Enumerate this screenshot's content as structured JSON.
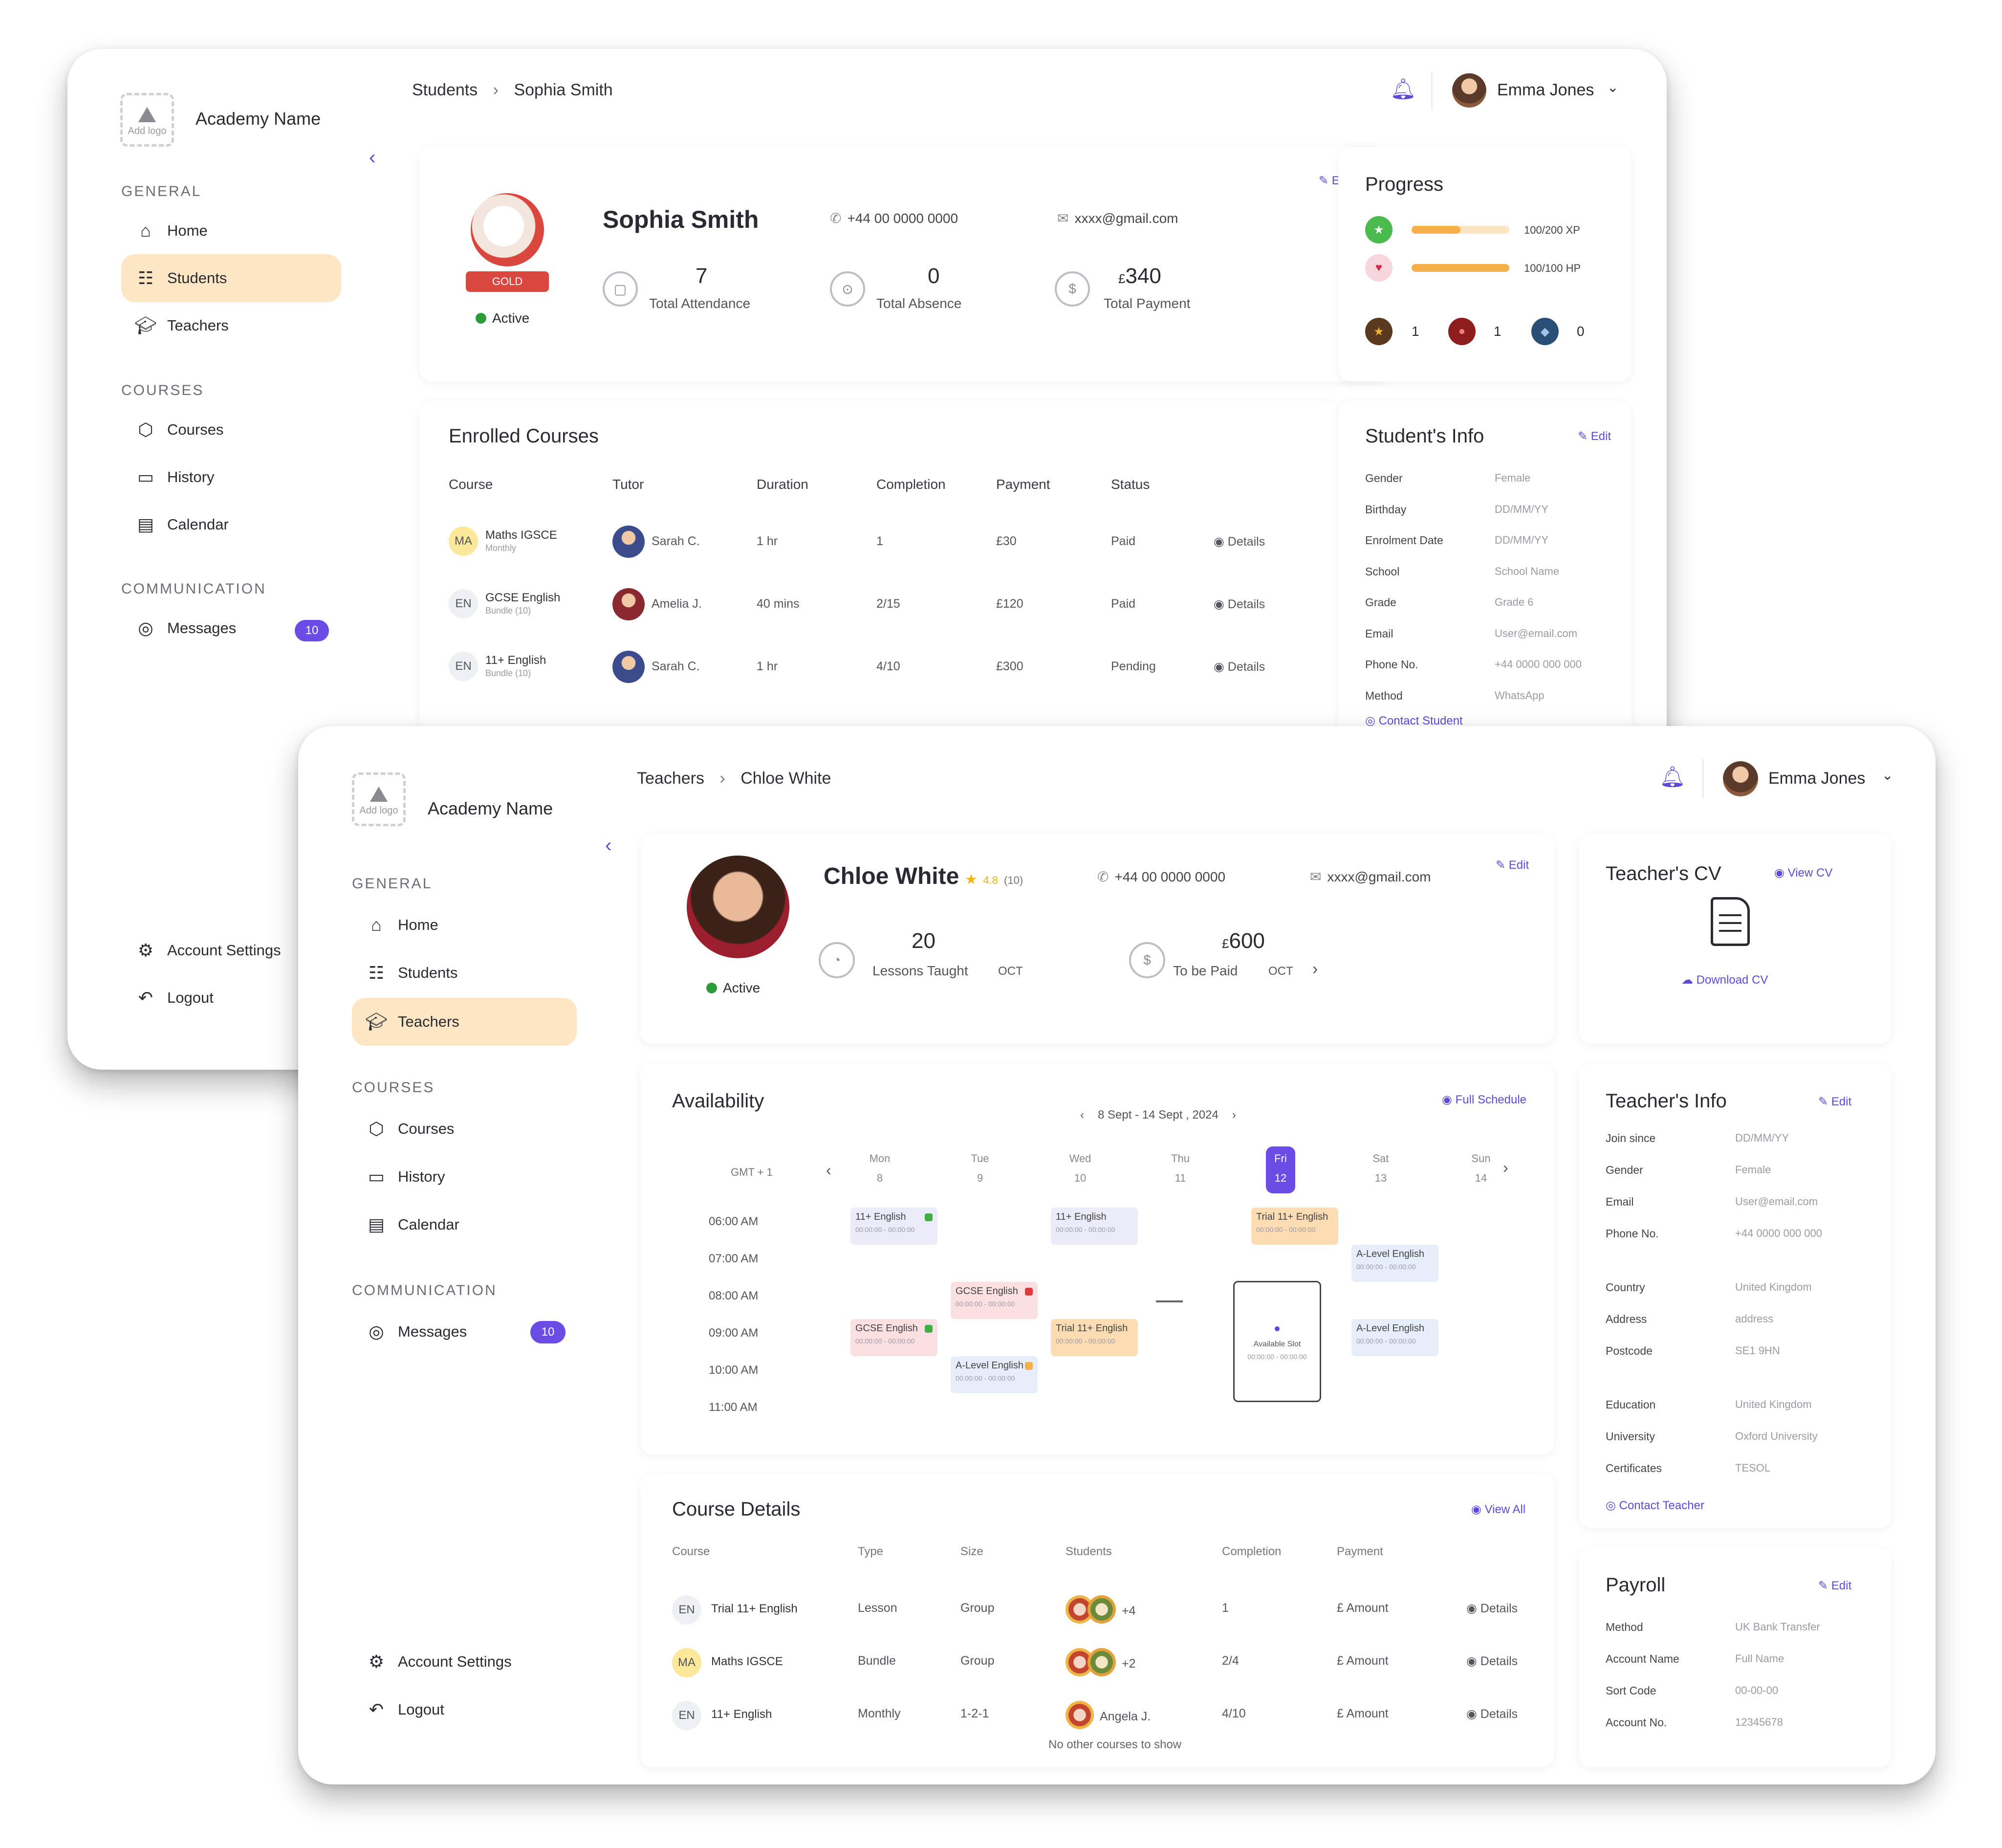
{
  "student_window": {
    "academy": {
      "name": "Academy Name",
      "logo_text": "Add logo"
    },
    "sections": {
      "general": "GENERAL",
      "courses": "COURSES",
      "communication": "COMMUNICATION"
    },
    "nav": {
      "home": "Home",
      "students": "Students",
      "teachers": "Teachers",
      "courses": "Courses",
      "history": "History",
      "calendar": "Calendar",
      "messages": "Messages",
      "messages_badge": "10",
      "account_settings": "Account Settings",
      "logout": "Logout"
    },
    "breadcrumb": {
      "parent": "Students",
      "current": "Sophia Smith"
    },
    "user": {
      "name": "Emma Jones"
    },
    "profile": {
      "name": "Sophia Smith",
      "phone": "+44 00 0000 0000",
      "email": "xxxx@gmail.com",
      "status": "Active",
      "edit": "Edit",
      "avatar_tag": "GOLD",
      "stats": [
        {
          "value": "7",
          "label": "Total Attendance"
        },
        {
          "value": "0",
          "label": "Total Absence"
        },
        {
          "value": "340",
          "currency": "£",
          "label": "Total Payment"
        }
      ]
    },
    "progress": {
      "title": "Progress",
      "bars": [
        {
          "label": "100/200 XP",
          "fraction": 0.5,
          "color": "#f5b04a"
        },
        {
          "label": "100/100 HP",
          "fraction": 1.0,
          "color": "#f5b04a"
        }
      ],
      "medals": [
        {
          "count": "1",
          "color": "#f2b632"
        },
        {
          "count": "1",
          "color": "#c0392b"
        },
        {
          "count": "0",
          "color": "#3b6ea5"
        }
      ]
    },
    "enrolled": {
      "title": "Enrolled Courses",
      "headers": [
        "Course",
        "Tutor",
        "Duration",
        "Completion",
        "Payment",
        "Status"
      ],
      "details_label": "Details",
      "rows": [
        {
          "badge": "MA",
          "badge_color": "#fbe89a",
          "course": "Maths IGSCE",
          "sub": "Monthly",
          "tutor": "Sarah C.",
          "duration": "1 hr",
          "completion": "1",
          "payment": "£30",
          "status": "Paid"
        },
        {
          "badge": "EN",
          "badge_color": "#eef0f6",
          "course": "GCSE English",
          "sub": "Bundle (10)",
          "tutor": "Amelia J.",
          "duration": "40 mins",
          "completion": "2/15",
          "payment": "£120",
          "status": "Paid"
        },
        {
          "badge": "EN",
          "badge_color": "#eef0f6",
          "course": "11+ English",
          "sub": "Bundle (10)",
          "tutor": "Sarah C.",
          "duration": "1 hr",
          "completion": "4/10",
          "payment": "£300",
          "status": "Pending"
        }
      ]
    },
    "student_info": {
      "title": "Student's Info",
      "edit": "Edit",
      "rows": [
        {
          "k": "Gender",
          "v": "Female"
        },
        {
          "k": "Birthday",
          "v": "DD/MM/YY"
        },
        {
          "k": "Enrolment Date",
          "v": "DD/MM/YY"
        },
        {
          "k": "School",
          "v": "School Name"
        },
        {
          "k": "Grade",
          "v": "Grade 6"
        },
        {
          "k": "Email",
          "v": "User@email.com"
        },
        {
          "k": "Phone No.",
          "v": "+44 0000 000 000"
        },
        {
          "k": "Method",
          "v": "WhatsApp"
        }
      ],
      "contact": "Contact Student"
    }
  },
  "teacher_window": {
    "academy": {
      "name": "Academy Name",
      "logo_text": "Add logo"
    },
    "sections": {
      "general": "GENERAL",
      "courses": "COURSES",
      "communication": "COMMUNICATION"
    },
    "nav": {
      "home": "Home",
      "students": "Students",
      "teachers": "Teachers",
      "courses": "Courses",
      "history": "History",
      "calendar": "Calendar",
      "messages": "Messages",
      "messages_badge": "10",
      "account_settings": "Account Settings",
      "logout": "Logout"
    },
    "breadcrumb": {
      "parent": "Teachers",
      "current": "Chloe White"
    },
    "user": {
      "name": "Emma Jones"
    },
    "profile": {
      "name": "Chloe White",
      "rating": "4.8",
      "reviews": "(10)",
      "phone": "+44 00 0000 0000",
      "email": "xxxx@gmail.com",
      "status": "Active",
      "edit": "Edit",
      "stats": [
        {
          "value": "20",
          "label": "Lessons Taught",
          "period": "OCT"
        },
        {
          "value": "600",
          "currency": "£",
          "label": "To be Paid",
          "period": "OCT"
        }
      ]
    },
    "cv": {
      "title": "Teacher's CV",
      "view": "View CV",
      "download": "Download CV"
    },
    "availability": {
      "title": "Availability",
      "full_schedule": "Full Schedule",
      "range": "8 Sept - 14 Sept , 2024",
      "timezone": "GMT + 1",
      "days": [
        {
          "d": "Mon",
          "n": "8"
        },
        {
          "d": "Tue",
          "n": "9"
        },
        {
          "d": "Wed",
          "n": "10"
        },
        {
          "d": "Thu",
          "n": "11"
        },
        {
          "d": "Fri",
          "n": "12",
          "active": true
        },
        {
          "d": "Sat",
          "n": "13"
        },
        {
          "d": "Sun",
          "n": "14"
        }
      ],
      "times": [
        "06:00 AM",
        "07:00 AM",
        "08:00 AM",
        "09:00 AM",
        "10:00 AM",
        "11:00 AM"
      ],
      "events": [
        {
          "day": 0,
          "slot": 0,
          "title": "11+ English",
          "sub": "00:00:00 - 00:00:00",
          "bg": "#ecebf9",
          "dot": "#3cb043"
        },
        {
          "day": 2,
          "slot": 0,
          "title": "11+ English",
          "sub": "00:00:00 - 00:00:00",
          "bg": "#ecebf9",
          "dot": ""
        },
        {
          "day": 4,
          "slot": 0,
          "title": "Trial 11+ English",
          "sub": "00:00:00 - 00:00:00",
          "bg": "#fcdcb3",
          "dot": ""
        },
        {
          "day": 5,
          "slot": 1,
          "title": "A-Level English",
          "sub": "00:00:00 - 00:00:00",
          "bg": "#e6eefb",
          "dot": ""
        },
        {
          "day": 1,
          "slot": 2,
          "title": "GCSE English",
          "sub": "00:00:00 - 00:00:00",
          "bg": "#fbe0e2",
          "dot": "#e03b3b"
        },
        {
          "day": 0,
          "slot": 3,
          "title": "GCSE English",
          "sub": "00:00:00 - 00:00:00",
          "bg": "#fbe0e2",
          "dot": "#3cb043"
        },
        {
          "day": 2,
          "slot": 3,
          "title": "Trial 11+ English",
          "sub": "00:00:00 - 00:00:00",
          "bg": "#fcdcb3",
          "dot": ""
        },
        {
          "day": 5,
          "slot": 3,
          "title": "A-Level English",
          "sub": "00:00:00 - 00:00:00",
          "bg": "#e6eefb",
          "dot": ""
        },
        {
          "day": 1,
          "slot": 4,
          "title": "A-Level English",
          "sub": "00:00:00 - 00:00:00",
          "bg": "#e6eefb",
          "dot": "#f5b04a"
        }
      ],
      "free_slot": {
        "title": "Available Slot",
        "sub": "00:00:00 - 00:00:00"
      }
    },
    "teacher_info": {
      "title": "Teacher's Info",
      "edit": "Edit",
      "rows": [
        {
          "k": "Join since",
          "v": "DD/MM/YY"
        },
        {
          "k": "Gender",
          "v": "Female"
        },
        {
          "k": "Email",
          "v": "User@email.com"
        },
        {
          "k": "Phone No.",
          "v": "+44 0000 000 000"
        },
        {
          "k": "Country",
          "v": "United Kingdom"
        },
        {
          "k": "Address",
          "v": "address"
        },
        {
          "k": "Postcode",
          "v": "SE1 9HN"
        },
        {
          "k": "Education",
          "v": "United Kingdom"
        },
        {
          "k": "University",
          "v": "Oxford University"
        },
        {
          "k": "Certificates",
          "v": "TESOL"
        }
      ],
      "contact": "Contact Teacher"
    },
    "course_details": {
      "title": "Course Details",
      "view_all": "View All",
      "headers": [
        "Course",
        "Type",
        "Size",
        "Students",
        "Completion",
        "Payment"
      ],
      "details_label": "Details",
      "rows": [
        {
          "badge": "EN",
          "badge_color": "#eef0f6",
          "course": "Trial 11+ English",
          "type": "Lesson",
          "size": "Group",
          "students": "+4",
          "completion": "1",
          "payment": "£ Amount"
        },
        {
          "badge": "MA",
          "badge_color": "#fbe89a",
          "course": "Maths IGSCE",
          "type": "Bundle",
          "size": "Group",
          "students": "+2",
          "completion": "2/4",
          "payment": "£ Amount"
        },
        {
          "badge": "EN",
          "badge_color": "#eef0f6",
          "course": "11+ English",
          "type": "Monthly",
          "size": "1-2-1",
          "students": "Angela J.",
          "completion": "4/10",
          "payment": "£ Amount"
        }
      ],
      "footer": "No other courses to show"
    },
    "payroll": {
      "title": "Payroll",
      "edit": "Edit",
      "rows": [
        {
          "k": "Method",
          "v": "UK Bank Transfer"
        },
        {
          "k": "Account Name",
          "v": "Full Name"
        },
        {
          "k": "Sort Code",
          "v": "00-00-00"
        },
        {
          "k": "Account No.",
          "v": "12345678"
        }
      ]
    }
  }
}
